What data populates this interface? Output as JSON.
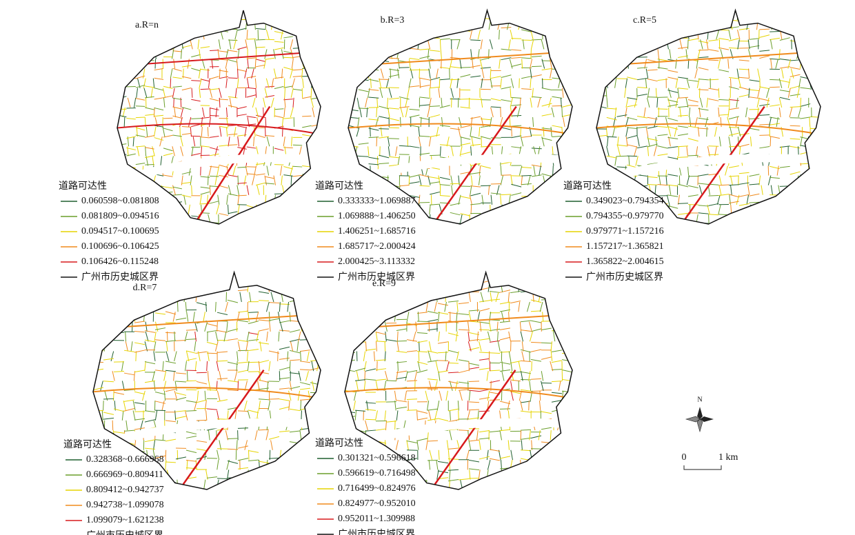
{
  "panels": [
    {
      "title": "a.R=n",
      "legend_title": "道路可达性",
      "classes": [
        "0.060598~0.081808",
        "0.081809~0.094516",
        "0.094517~0.100695",
        "0.100696~0.106425",
        "0.106426~0.115248"
      ],
      "boundary": "广州市历史城区界"
    },
    {
      "title": "b.R=3",
      "legend_title": "道路可达性",
      "classes": [
        "0.333333~1.069887",
        "1.069888~1.406250",
        "1.406251~1.685716",
        "1.685717~2.000424",
        "2.000425~3.113332"
      ],
      "boundary": "广州市历史城区界"
    },
    {
      "title": "c.R=5",
      "legend_title": "道路可达性",
      "classes": [
        "0.349023~0.794354",
        "0.794355~0.979770",
        "0.979771~1.157216",
        "1.157217~1.365821",
        "1.365822~2.004615"
      ],
      "boundary": "广州市历史城区界"
    },
    {
      "title": "d.R=7",
      "legend_title": "道路可达性",
      "classes": [
        "0.328368~0.666968",
        "0.666969~0.809411",
        "0.809412~0.942737",
        "0.942738~1.099078",
        "1.099079~1.621238"
      ],
      "boundary": "广州市历史城区界"
    },
    {
      "title": "e.R=9",
      "legend_title": "道路可达性",
      "classes": [
        "0.301321~0.596618",
        "0.596619~0.716498",
        "0.716499~0.824976",
        "0.824977~0.952010",
        "0.952011~1.309988"
      ],
      "boundary": "广州市历史城区界"
    }
  ],
  "class_colors": [
    "#1f5f2e",
    "#6a9e2a",
    "#e6d400",
    "#f08a1c",
    "#d7191c"
  ],
  "north": "N",
  "scale": {
    "start": "0",
    "end": "1 km"
  }
}
